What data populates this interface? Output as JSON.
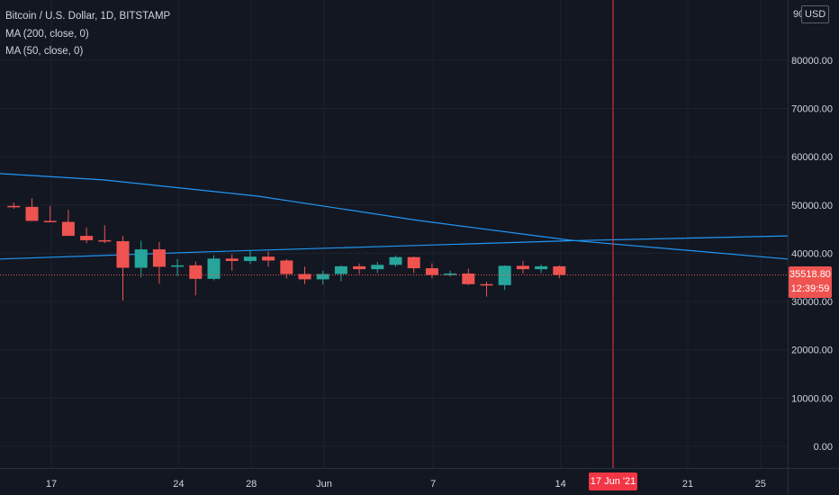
{
  "legend": {
    "title": "Bitcoin / U.S. Dollar, 1D, BITSTAMP",
    "ma200": "MA (200, close, 0)",
    "ma50": "MA (50, close, 0)"
  },
  "unit_label": "USD",
  "top_tick_partial": "90",
  "last_price": {
    "value": "35518.80",
    "countdown": "12:39:59"
  },
  "crosshair_date": "17 Jun '21",
  "colors": {
    "background": "#131722",
    "grid": "#1e222d",
    "up": "#26a69a",
    "down": "#ef5350",
    "ma": "#2196f3",
    "crosshair": "#f23645",
    "axis_text": "#d1d4dc"
  },
  "chart_data": {
    "type": "candlestick",
    "symbol": "Bitcoin / U.S. Dollar",
    "interval": "1D",
    "exchange": "BITSTAMP",
    "y_ticks": [
      "0.00",
      "10000.00",
      "20000.00",
      "30000.00",
      "40000.00",
      "50000.00",
      "60000.00",
      "70000.00",
      "80000.00"
    ],
    "x_ticks": [
      "17",
      "24",
      "28",
      "Jun",
      "7",
      "14",
      "21",
      "25"
    ],
    "ylim": [
      -3000,
      92000
    ],
    "grid": true,
    "candles": [
      {
        "day": 13,
        "open": 49800,
        "high": 50500,
        "low": 49200,
        "close": 49600
      },
      {
        "day": 14,
        "open": 49600,
        "high": 51400,
        "low": 46700,
        "close": 46700
      },
      {
        "day": 15,
        "open": 46700,
        "high": 49800,
        "low": 46500,
        "close": 46500
      },
      {
        "day": 16,
        "open": 46500,
        "high": 49000,
        "low": 43700,
        "close": 43600
      },
      {
        "day": 17,
        "open": 43600,
        "high": 45300,
        "low": 42100,
        "close": 42700
      },
      {
        "day": 18,
        "open": 42700,
        "high": 45800,
        "low": 42100,
        "close": 42500
      },
      {
        "day": 19,
        "open": 42500,
        "high": 43600,
        "low": 30200,
        "close": 37000
      },
      {
        "day": 20,
        "open": 37000,
        "high": 42600,
        "low": 35000,
        "close": 40800
      },
      {
        "day": 21,
        "open": 40800,
        "high": 42300,
        "low": 33700,
        "close": 37200
      },
      {
        "day": 22,
        "open": 37200,
        "high": 38800,
        "low": 35300,
        "close": 37500
      },
      {
        "day": 23,
        "open": 37500,
        "high": 38300,
        "low": 31300,
        "close": 34700
      },
      {
        "day": 24,
        "open": 34700,
        "high": 39600,
        "low": 34400,
        "close": 38900
      },
      {
        "day": 25,
        "open": 38900,
        "high": 39800,
        "low": 36400,
        "close": 38400
      },
      {
        "day": 26,
        "open": 38400,
        "high": 40500,
        "low": 37800,
        "close": 39300
      },
      {
        "day": 27,
        "open": 39300,
        "high": 40400,
        "low": 37200,
        "close": 38500
      },
      {
        "day": 28,
        "open": 38500,
        "high": 38800,
        "low": 34800,
        "close": 35700
      },
      {
        "day": 29,
        "open": 35700,
        "high": 37200,
        "low": 33600,
        "close": 34600
      },
      {
        "day": 30,
        "open": 34600,
        "high": 36400,
        "low": 33500,
        "close": 35700
      },
      {
        "day": 31,
        "open": 35700,
        "high": 37500,
        "low": 34200,
        "close": 37300
      },
      {
        "day": 32,
        "open": 37300,
        "high": 37900,
        "low": 35700,
        "close": 36700
      },
      {
        "day": 33,
        "open": 36700,
        "high": 38200,
        "low": 35900,
        "close": 37600
      },
      {
        "day": 34,
        "open": 37600,
        "high": 39500,
        "low": 37200,
        "close": 39200
      },
      {
        "day": 35,
        "open": 39200,
        "high": 39300,
        "low": 35900,
        "close": 36900
      },
      {
        "day": 36,
        "open": 36900,
        "high": 37900,
        "low": 34800,
        "close": 35500
      },
      {
        "day": 37,
        "open": 35500,
        "high": 36400,
        "low": 35200,
        "close": 35800
      },
      {
        "day": 38,
        "open": 35800,
        "high": 36800,
        "low": 33400,
        "close": 33600
      },
      {
        "day": 39,
        "open": 33600,
        "high": 34100,
        "low": 31000,
        "close": 33400
      },
      {
        "day": 40,
        "open": 33400,
        "high": 37500,
        "low": 32400,
        "close": 37400
      },
      {
        "day": 41,
        "open": 37400,
        "high": 38400,
        "low": 35800,
        "close": 36700
      },
      {
        "day": 42,
        "open": 36700,
        "high": 37700,
        "low": 35900,
        "close": 37300
      },
      {
        "day": 43,
        "open": 37300,
        "high": 37500,
        "low": 34800,
        "close": 35519
      }
    ],
    "ma50": [
      {
        "day": 0,
        "value": 38800
      },
      {
        "day": 20,
        "value": 40300
      },
      {
        "day": 40,
        "value": 41600
      },
      {
        "day": 55,
        "value": 42600
      },
      {
        "day": 76,
        "value": 43600
      }
    ],
    "ma200": [
      {
        "day": 0,
        "value": 56500
      },
      {
        "day": 10,
        "value": 55200
      },
      {
        "day": 25,
        "value": 51800
      },
      {
        "day": 40,
        "value": 46900
      },
      {
        "day": 55,
        "value": 42700
      },
      {
        "day": 76,
        "value": 38800
      }
    ],
    "crosshair_day": 55,
    "last_price": 35518.8
  }
}
